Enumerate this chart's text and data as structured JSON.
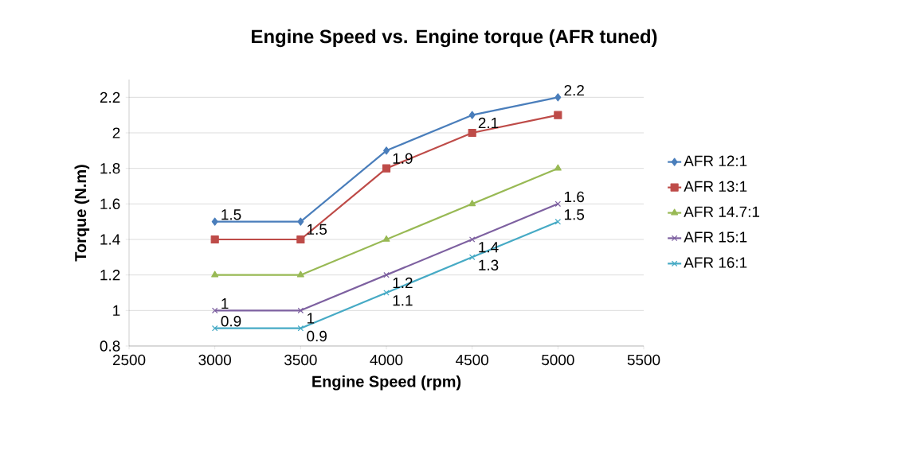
{
  "chart_data": {
    "type": "line",
    "title": "Engine Speed vs. Engine torque (AFR tuned)",
    "xlabel": "Engine Speed (rpm)",
    "ylabel": "Torque (N.m)",
    "x": [
      3000,
      3500,
      4000,
      4500,
      5000
    ],
    "series": [
      {
        "name": "AFR 12:1",
        "color": "#4a7ebb",
        "marker": "diamond",
        "values": [
          1.5,
          1.5,
          1.9,
          2.1,
          2.2
        ],
        "value_labels": [
          "1.5",
          "1.5",
          "1.9",
          "2.1",
          "2.2"
        ]
      },
      {
        "name": "AFR 13:1",
        "color": "#be4b48",
        "marker": "square",
        "values": [
          1.4,
          1.4,
          1.8,
          2.0,
          2.1
        ]
      },
      {
        "name": "AFR 14.7:1",
        "color": "#98b954",
        "marker": "triangle",
        "values": [
          1.2,
          1.2,
          1.4,
          1.6,
          1.8
        ]
      },
      {
        "name": "AFR 15:1",
        "color": "#7d60a0",
        "marker": "cross",
        "values": [
          1,
          1,
          1.2,
          1.4,
          1.6
        ],
        "value_labels": [
          "1",
          "1",
          "1.2",
          "1.4",
          "1.6"
        ]
      },
      {
        "name": "AFR 16:1",
        "color": "#46aac5",
        "marker": "cross",
        "values": [
          0.9,
          0.9,
          1.1,
          1.3,
          1.5
        ],
        "value_labels": [
          "0.9",
          "0.9",
          "1.1",
          "1.3",
          "1.5"
        ]
      }
    ],
    "xlim": [
      2500,
      5500
    ],
    "xticks": [
      2500,
      3000,
      3500,
      4000,
      4500,
      5000,
      5500
    ],
    "ylim": [
      0.8,
      2.3
    ],
    "yticks": [
      0.8,
      1,
      1.2,
      1.4,
      1.6,
      1.8,
      2,
      2.2
    ],
    "grid": "y",
    "legend": "right",
    "line_style": "solid"
  }
}
